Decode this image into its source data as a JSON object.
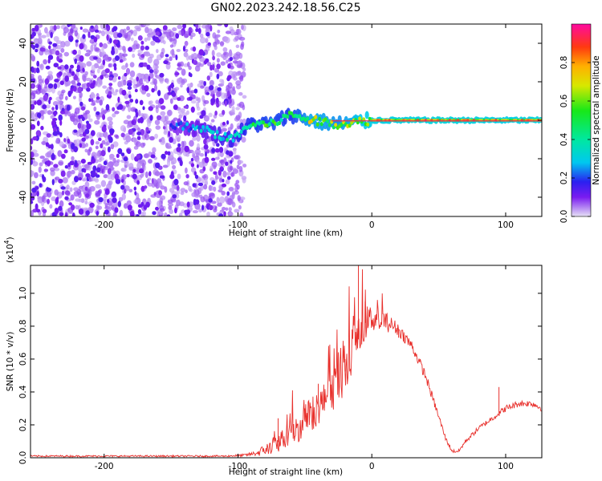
{
  "title": "GN02.2023.242.18.56.C25",
  "colors": {
    "snr_line": "#e8302c",
    "flat_band_core": "#e0305a",
    "spectrogram_noise": "#7a1cf0"
  },
  "chart_data": [
    {
      "type": "heatmap",
      "name": "spectrogram",
      "title": "",
      "xlabel": "Height of straight line (km)",
      "ylabel": "Frequency (Hz)",
      "xlim": [
        -255,
        127
      ],
      "ylim": [
        -50,
        50
      ],
      "xticks": [
        -200,
        -100,
        0,
        100
      ],
      "yticks": [
        -40,
        -20,
        0,
        20,
        40
      ],
      "colorbar": {
        "label": "Normalized spectral amplitude",
        "range": [
          0.0,
          1.0
        ],
        "ticks": [
          "0.0",
          "0.2",
          "0.4",
          "0.6",
          "0.8"
        ],
        "tick_values": [
          0.0,
          0.2,
          0.4,
          0.6,
          0.8
        ]
      },
      "features": {
        "noise_region_x": [
          -255,
          -95
        ],
        "noise_amplitude": [
          0.05,
          0.25
        ],
        "signal_band": [
          {
            "x": -145,
            "freq": -3,
            "amp": 0.25
          },
          {
            "x": -125,
            "freq": -5,
            "amp": 0.35
          },
          {
            "x": -105,
            "freq": -10,
            "amp": 0.45
          },
          {
            "x": -90,
            "freq": -2,
            "amp": 0.55
          },
          {
            "x": -75,
            "freq": -2,
            "amp": 0.6
          },
          {
            "x": -60,
            "freq": 3,
            "amp": 0.55
          },
          {
            "x": -45,
            "freq": 0,
            "amp": 0.75
          },
          {
            "x": -25,
            "freq": -2,
            "amp": 0.7
          },
          {
            "x": 0,
            "freq": 0,
            "amp": 0.85
          },
          {
            "x": 50,
            "freq": 0,
            "amp": 0.9
          },
          {
            "x": 100,
            "freq": 0,
            "amp": 0.85
          },
          {
            "x": 127,
            "freq": 0,
            "amp": 0.9
          }
        ]
      }
    },
    {
      "type": "line",
      "name": "snr",
      "title": "",
      "xlabel": "Height of straight line (km)",
      "ylabel": "SNR (10 * v/v)",
      "yscale_label": "(x10",
      "yscale_exp": "4",
      "yscale_close": ")",
      "xlim": [
        -255,
        127
      ],
      "ylim": [
        0,
        1.17
      ],
      "xticks": [
        -200,
        -100,
        0,
        100
      ],
      "yticks": [
        0.0,
        0.2,
        0.4,
        0.6,
        0.8,
        1.0
      ],
      "ytick_labels": [
        "0.0",
        "0.2",
        "0.4",
        "0.6",
        "0.8",
        "1.0"
      ],
      "envelope": {
        "x": [
          -255,
          -110,
          -95,
          -85,
          -75,
          -65,
          -55,
          -45,
          -35,
          -25,
          -15,
          -10,
          -5,
          0,
          10,
          20,
          30,
          40,
          50,
          55,
          60,
          65,
          70,
          80,
          90,
          100,
          110,
          120,
          127
        ],
        "y": [
          0.01,
          0.01,
          0.015,
          0.03,
          0.07,
          0.12,
          0.18,
          0.27,
          0.35,
          0.45,
          0.6,
          0.72,
          0.82,
          0.85,
          0.83,
          0.78,
          0.68,
          0.5,
          0.25,
          0.12,
          0.04,
          0.04,
          0.1,
          0.18,
          0.24,
          0.3,
          0.33,
          0.33,
          0.3
        ]
      },
      "noise_level": {
        "x": [
          -255,
          -110,
          -90,
          -70,
          -50,
          -30,
          -15,
          0,
          20,
          40,
          60,
          80,
          100,
          127
        ],
        "y": [
          0.005,
          0.005,
          0.01,
          0.06,
          0.1,
          0.12,
          0.15,
          0.08,
          0.04,
          0.03,
          0.01,
          0.015,
          0.02,
          0.02
        ]
      },
      "peaks": [
        {
          "x": -70,
          "y": 0.24
        },
        {
          "x": -50,
          "y": 0.3
        },
        {
          "x": -40,
          "y": 0.45
        },
        {
          "x": -20,
          "y": 0.6
        },
        {
          "x": -10,
          "y": 1.17
        },
        {
          "x": -5,
          "y": 0.95
        },
        {
          "x": 20,
          "y": 0.73
        },
        {
          "x": 95,
          "y": 0.43
        }
      ]
    }
  ]
}
